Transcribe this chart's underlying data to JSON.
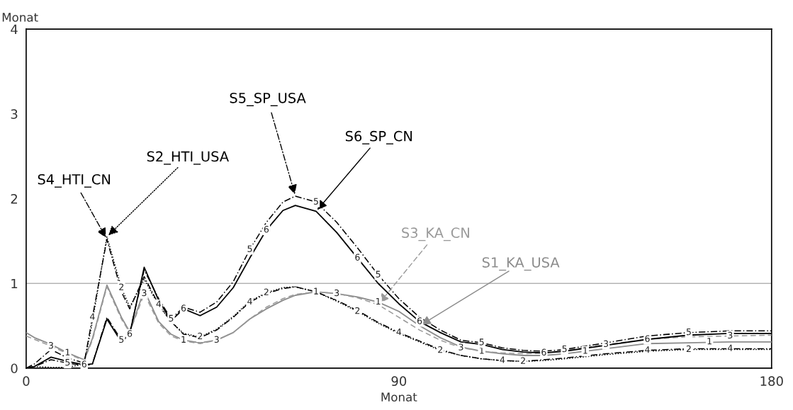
{
  "chart_data": {
    "type": "line",
    "xlabel": "Monat",
    "ylabel": "Monat",
    "x": [
      0,
      2,
      6,
      10,
      14,
      16,
      19.5,
      23,
      25,
      28.5,
      32,
      35,
      38,
      42,
      46,
      50,
      54,
      58,
      62,
      65,
      70,
      75,
      80,
      85,
      90,
      95,
      100,
      105,
      110,
      115,
      120,
      125,
      130,
      140,
      150,
      160,
      170,
      180
    ],
    "series": [
      {
        "name": "S1_KA_USA",
        "color": "#8c8c8c",
        "line_style": "solid",
        "values": [
          0.42,
          0.36,
          0.28,
          0.18,
          0.1,
          0.35,
          0.98,
          0.6,
          0.43,
          0.92,
          0.55,
          0.4,
          0.33,
          0.3,
          0.33,
          0.42,
          0.58,
          0.7,
          0.8,
          0.86,
          0.9,
          0.88,
          0.84,
          0.78,
          0.67,
          0.5,
          0.36,
          0.25,
          0.2,
          0.17,
          0.15,
          0.15,
          0.17,
          0.23,
          0.29,
          0.3,
          0.31,
          0.31
        ]
      },
      {
        "name": "S2_HTI_USA",
        "color": "#000000",
        "line_style": "dotted",
        "values": [
          0,
          0.02,
          0.01,
          0.01,
          0.05,
          0.55,
          1.55,
          0.95,
          0.72,
          1.05,
          0.74,
          0.55,
          0.41,
          0.37,
          0.46,
          0.61,
          0.79,
          0.89,
          0.95,
          0.96,
          0.9,
          0.79,
          0.67,
          0.53,
          0.41,
          0.31,
          0.21,
          0.15,
          0.11,
          0.09,
          0.08,
          0.09,
          0.11,
          0.16,
          0.2,
          0.22,
          0.22,
          0.22
        ]
      },
      {
        "name": "S3_KA_CN",
        "color": "#9a9a9a",
        "line_style": "dashed",
        "values": [
          0.38,
          0.34,
          0.26,
          0.17,
          0.09,
          0.33,
          0.96,
          0.58,
          0.42,
          0.88,
          0.53,
          0.38,
          0.32,
          0.29,
          0.33,
          0.42,
          0.58,
          0.72,
          0.82,
          0.87,
          0.9,
          0.88,
          0.83,
          0.75,
          0.6,
          0.45,
          0.33,
          0.24,
          0.2,
          0.18,
          0.17,
          0.18,
          0.21,
          0.28,
          0.34,
          0.37,
          0.38,
          0.39
        ]
      },
      {
        "name": "S4_HTI_CN",
        "color": "#000000",
        "line_style": "dashdot",
        "values": [
          0,
          0.05,
          0.22,
          0.12,
          0.06,
          0.6,
          1.52,
          0.9,
          0.7,
          1.08,
          0.75,
          0.55,
          0.4,
          0.36,
          0.45,
          0.6,
          0.78,
          0.88,
          0.94,
          0.96,
          0.9,
          0.8,
          0.68,
          0.54,
          0.42,
          0.32,
          0.22,
          0.15,
          0.11,
          0.09,
          0.08,
          0.1,
          0.12,
          0.17,
          0.21,
          0.23,
          0.23,
          0.23
        ]
      },
      {
        "name": "S5_SP_USA",
        "color": "#000000",
        "line_style": "dashdot",
        "values": [
          0,
          0.02,
          0.1,
          0.06,
          0.03,
          0.05,
          0.6,
          0.33,
          0.42,
          1.16,
          0.82,
          0.58,
          0.72,
          0.66,
          0.78,
          1.02,
          1.4,
          1.72,
          1.96,
          2.03,
          1.96,
          1.72,
          1.42,
          1.1,
          0.82,
          0.6,
          0.45,
          0.33,
          0.3,
          0.24,
          0.21,
          0.2,
          0.22,
          0.3,
          0.38,
          0.42,
          0.44,
          0.44
        ]
      },
      {
        "name": "S6_SP_CN",
        "color": "#000000",
        "line_style": "solid",
        "values": [
          0,
          0.02,
          0.13,
          0.08,
          0.04,
          0.05,
          0.58,
          0.31,
          0.4,
          1.19,
          0.8,
          0.56,
          0.7,
          0.62,
          0.72,
          0.95,
          1.3,
          1.63,
          1.86,
          1.92,
          1.85,
          1.6,
          1.3,
          1.0,
          0.76,
          0.55,
          0.42,
          0.31,
          0.28,
          0.22,
          0.19,
          0.18,
          0.2,
          0.27,
          0.34,
          0.39,
          0.41,
          0.41
        ]
      }
    ],
    "xlim": [
      0,
      180
    ],
    "xticks": [
      0,
      90,
      180
    ],
    "ylim": [
      0,
      4
    ],
    "yticks": [
      0,
      1,
      2,
      3,
      4
    ],
    "ref_lines": [
      {
        "axis": "y",
        "value": 1,
        "color": "#b4b4b4"
      }
    ],
    "grid": false,
    "legend": false,
    "marker": "none",
    "annotations": [
      {
        "text": "1",
        "x": 10,
        "y": 0.18
      },
      {
        "text": "1",
        "x": 38,
        "y": 0.33
      },
      {
        "text": "1",
        "x": 70,
        "y": 0.9
      },
      {
        "text": "1",
        "x": 85,
        "y": 0.78
      },
      {
        "text": "1",
        "x": 110,
        "y": 0.2
      },
      {
        "text": "1",
        "x": 135,
        "y": 0.2
      },
      {
        "text": "1",
        "x": 165,
        "y": 0.31
      },
      {
        "text": "2",
        "x": 23,
        "y": 0.95
      },
      {
        "text": "2",
        "x": 42,
        "y": 0.37
      },
      {
        "text": "2",
        "x": 58,
        "y": 0.89
      },
      {
        "text": "2",
        "x": 80,
        "y": 0.67
      },
      {
        "text": "2",
        "x": 100,
        "y": 0.21
      },
      {
        "text": "2",
        "x": 120,
        "y": 0.08
      },
      {
        "text": "2",
        "x": 160,
        "y": 0.22
      },
      {
        "text": "3",
        "x": 6,
        "y": 0.26
      },
      {
        "text": "3",
        "x": 28.5,
        "y": 0.88
      },
      {
        "text": "3",
        "x": 46,
        "y": 0.33
      },
      {
        "text": "3",
        "x": 75,
        "y": 0.88
      },
      {
        "text": "3",
        "x": 105,
        "y": 0.24
      },
      {
        "text": "3",
        "x": 140,
        "y": 0.28
      },
      {
        "text": "3",
        "x": 170,
        "y": 0.38
      },
      {
        "text": "4",
        "x": 16,
        "y": 0.6
      },
      {
        "text": "4",
        "x": 32,
        "y": 0.75
      },
      {
        "text": "4",
        "x": 54,
        "y": 0.78
      },
      {
        "text": "4",
        "x": 90,
        "y": 0.42
      },
      {
        "text": "4",
        "x": 115,
        "y": 0.09
      },
      {
        "text": "4",
        "x": 150,
        "y": 0.21
      },
      {
        "text": "4",
        "x": 170,
        "y": 0.23
      },
      {
        "text": "5",
        "x": 10,
        "y": 0.06
      },
      {
        "text": "5",
        "x": 23,
        "y": 0.33
      },
      {
        "text": "5",
        "x": 35,
        "y": 0.58
      },
      {
        "text": "5",
        "x": 54,
        "y": 1.4
      },
      {
        "text": "5",
        "x": 70,
        "y": 1.96
      },
      {
        "text": "5",
        "x": 85,
        "y": 1.1
      },
      {
        "text": "5",
        "x": 110,
        "y": 0.3
      },
      {
        "text": "5",
        "x": 130,
        "y": 0.22
      },
      {
        "text": "5",
        "x": 160,
        "y": 0.42
      },
      {
        "text": "6",
        "x": 14,
        "y": 0.04
      },
      {
        "text": "6",
        "x": 25,
        "y": 0.4
      },
      {
        "text": "6",
        "x": 38,
        "y": 0.7
      },
      {
        "text": "6",
        "x": 58,
        "y": 1.63
      },
      {
        "text": "6",
        "x": 80,
        "y": 1.3
      },
      {
        "text": "6",
        "x": 95,
        "y": 0.55
      },
      {
        "text": "6",
        "x": 125,
        "y": 0.18
      },
      {
        "text": "6",
        "x": 150,
        "y": 0.34
      }
    ]
  }
}
